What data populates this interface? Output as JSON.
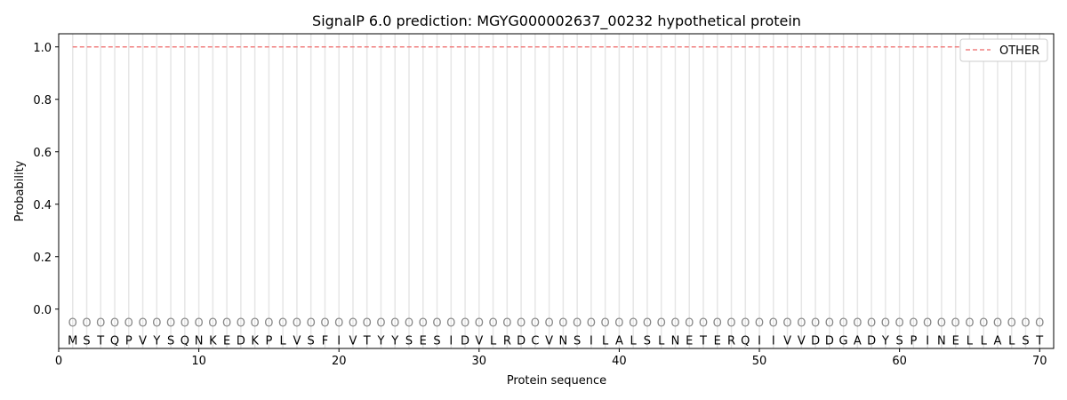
{
  "chart_data": {
    "type": "line",
    "title": "SignalP 6.0 prediction: MGYG000002637_00232 hypothetical protein",
    "xlabel": "Protein sequence",
    "ylabel": "Probability",
    "xlim": [
      0,
      71
    ],
    "ylim": [
      -0.15,
      1.05
    ],
    "xticks": [
      0,
      10,
      20,
      30,
      40,
      50,
      60,
      70
    ],
    "yticks": [
      0.0,
      0.2,
      0.4,
      0.6,
      0.8,
      1.0
    ],
    "ytick_labels": [
      "0.0",
      "0.2",
      "0.4",
      "0.6",
      "0.8",
      "1.0"
    ],
    "legend_position": "top-right",
    "sequence": [
      "M",
      "S",
      "T",
      "Q",
      "P",
      "V",
      "Y",
      "S",
      "Q",
      "N",
      "K",
      "E",
      "D",
      "K",
      "P",
      "L",
      "V",
      "S",
      "F",
      "I",
      "V",
      "T",
      "Y",
      "Y",
      "S",
      "E",
      "S",
      "I",
      "D",
      "V",
      "L",
      "R",
      "D",
      "C",
      "V",
      "N",
      "S",
      "I",
      "L",
      "A",
      "L",
      "S",
      "L",
      "N",
      "E",
      "T",
      "E",
      "R",
      "Q",
      "I",
      "I",
      "V",
      "V",
      "D",
      "D",
      "G",
      "A",
      "D",
      "Y",
      "S",
      "P",
      "I",
      "N",
      "E",
      "L",
      "L",
      "A",
      "L",
      "S",
      "T"
    ],
    "per_residue_label": "O",
    "series": [
      {
        "name": "OTHER",
        "color": "#f08080",
        "style": "dashed",
        "x_range": [
          1,
          70
        ],
        "value": 1.0
      }
    ]
  }
}
